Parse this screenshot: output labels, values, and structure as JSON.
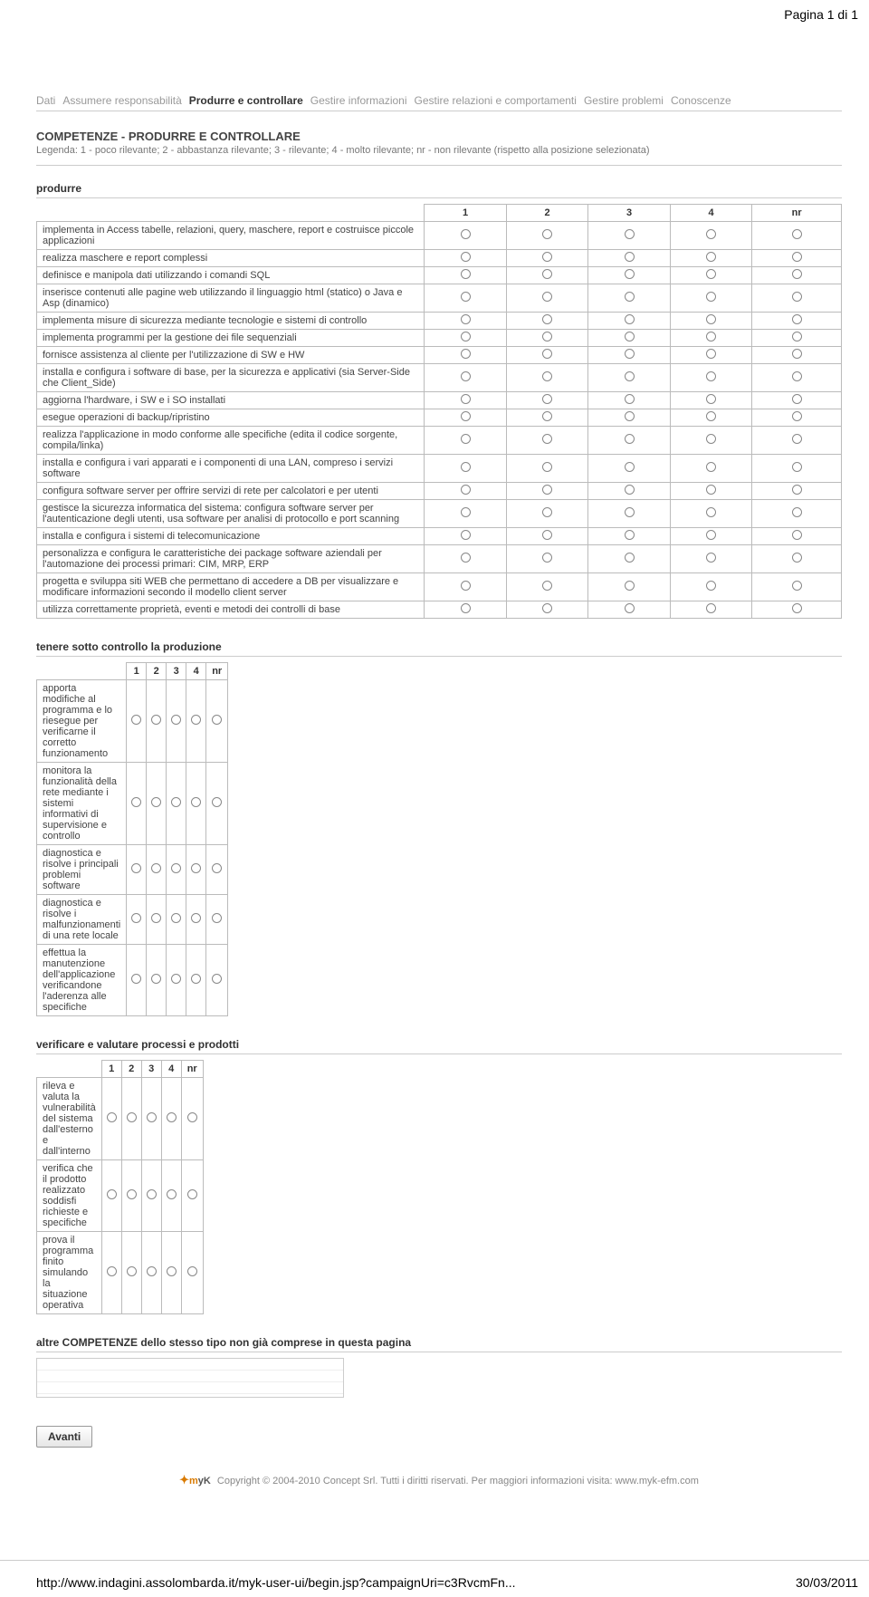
{
  "page_number": "Pagina 1 di 1",
  "nav": [
    "Dati",
    "Assumere responsabilità",
    "Produrre e controllare",
    "Gestire informazioni",
    "Gestire relazioni e comportamenti",
    "Gestire problemi",
    "Conoscenze"
  ],
  "nav_active_index": 2,
  "title": "COMPETENZE - PRODURRE E CONTROLLARE",
  "legend": "Legenda: 1 - poco rilevante; 2 - abbastanza rilevante; 3 - rilevante; 4 - molto rilevante; nr - non rilevante (rispetto alla posizione selezionata)",
  "headers": [
    "1",
    "2",
    "3",
    "4",
    "nr"
  ],
  "blocks": [
    {
      "title": "produrre",
      "full": true,
      "rows": [
        "implementa in Access tabelle, relazioni, query, maschere, report e costruisce piccole applicazioni",
        "realizza maschere e report complessi",
        "definisce e manipola dati utilizzando i comandi SQL",
        "inserisce contenuti alle pagine web utilizzando il linguaggio html (statico) o Java e Asp (dinamico)",
        "implementa misure di sicurezza mediante tecnologie e sistemi di controllo",
        "implementa programmi per la gestione dei file sequenziali",
        "fornisce assistenza al cliente per l'utilizzazione di SW e HW",
        "installa e configura i software di base, per la sicurezza e applicativi (sia Server-Side che Client_Side)",
        "aggiorna l'hardware, i SW e i SO installati",
        "esegue operazioni di backup/ripristino",
        "realizza l'applicazione in modo conforme alle specifiche (edita il codice sorgente, compila/linka)",
        "installa e configura i vari apparati e i componenti di una LAN, compreso i servizi software",
        "configura software server per offrire servizi di rete per calcolatori e per utenti",
        "gestisce la sicurezza informatica del sistema: configura software server per l'autenticazione degli utenti, usa software per analisi di protocollo e port scanning",
        "installa e configura i sistemi di telecomunicazione",
        "personalizza e configura le caratteristiche dei package software aziendali per l'automazione dei processi primari: CIM, MRP, ERP",
        "progetta e sviluppa siti WEB che permettano di accedere a DB per visualizzare e modificare informazioni secondo il modello client server",
        "utilizza correttamente proprietà, eventi e metodi dei controlli di base"
      ]
    },
    {
      "title": "tenere sotto controllo la produzione",
      "full": false,
      "rows": [
        "apporta modifiche al programma e lo riesegue per verificarne il corretto funzionamento",
        "monitora la funzionalità della rete mediante i sistemi informativi di supervisione e controllo",
        "diagnostica e risolve i principali problemi software",
        "diagnostica e risolve i malfunzionamenti di una rete locale",
        "effettua la manutenzione dell'applicazione verificandone l'aderenza alle specifiche"
      ]
    },
    {
      "title": "verificare e valutare processi e prodotti",
      "full": false,
      "rows": [
        "rileva e valuta la vulnerabilità del sistema dall'esterno e dall'interno",
        "verifica che il prodotto realizzato soddisfi richieste e specifiche",
        "prova il programma finito simulando la situazione operativa"
      ]
    }
  ],
  "other_title": "altre COMPETENZE dello stesso tipo non già comprese in questa pagina",
  "button_label": "Avanti",
  "copyright": "Copyright © 2004-2010 Concept Srl. Tutti i diritti riservati. Per maggiori informazioni visita: www.myk-efm.com",
  "bottom_url": "http://www.indagini.assolombarda.it/myk-user-ui/begin.jsp?campaignUri=c3RvcmFn...",
  "bottom_date": "30/03/2011"
}
